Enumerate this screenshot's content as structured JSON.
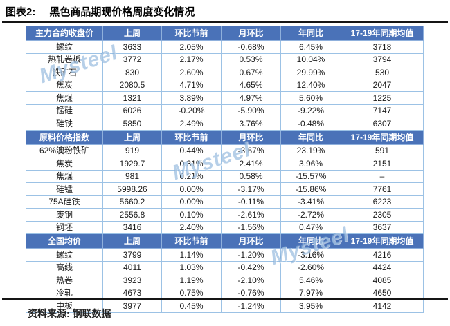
{
  "title": {
    "tag": "图表2:",
    "text": "黑色商品期现价格周度变化情况"
  },
  "footer": {
    "label": "资料来源:",
    "source": "钢联数据"
  },
  "watermark": {
    "text": "Mysteel"
  },
  "colors": {
    "header_blue": "#4a72b8",
    "cell_border_blue": "#9cc2e5",
    "up_bg": "#f8c9ce",
    "up_text": "#c00000",
    "down_bg": "#c9efce",
    "down_text": "#0b7a2e",
    "watermark_blue": "#7aa8d6",
    "rule_black": "#151515"
  },
  "table": {
    "columns": [
      "上周",
      "环比节前",
      "月环比",
      "年同比",
      "17-19年同期均值"
    ],
    "sections": [
      {
        "header": "主力合约收盘价",
        "rows": [
          {
            "name": "螺纹",
            "last_week": "3633",
            "wow": "2.05%",
            "wow_style": "up",
            "mom": "-0.68%",
            "yoy": "6.45%",
            "avg": "3718"
          },
          {
            "name": "热轧卷板",
            "last_week": "3772",
            "wow": "2.17%",
            "wow_style": "up",
            "mom": "0.53%",
            "yoy": "10.04%",
            "avg": "3794"
          },
          {
            "name": "铁矿石",
            "last_week": "830",
            "wow": "2.60%",
            "wow_style": "up",
            "mom": "0.67%",
            "yoy": "29.99%",
            "avg": "530"
          },
          {
            "name": "焦炭",
            "last_week": "2080.5",
            "wow": "4.71%",
            "wow_style": "up",
            "mom": "4.65%",
            "yoy": "12.40%",
            "avg": "2047"
          },
          {
            "name": "焦煤",
            "last_week": "1321",
            "wow": "3.89%",
            "wow_style": "up",
            "mom": "4.97%",
            "yoy": "5.60%",
            "avg": "1225"
          },
          {
            "name": "锰硅",
            "last_week": "6026",
            "wow": "-0.20%",
            "wow_style": "down",
            "mom": "-5.90%",
            "yoy": "-9.22%",
            "avg": "7147"
          },
          {
            "name": "硅铁",
            "last_week": "5850",
            "wow": "2.49%",
            "wow_style": "up",
            "mom": "3.76%",
            "yoy": "-0.48%",
            "avg": "6307"
          }
        ]
      },
      {
        "header": "原料价格指数",
        "rows": [
          {
            "name": "62%澳粉铁矿",
            "last_week": "919",
            "wow": "0.44%",
            "wow_style": "up",
            "mom": "-3.67%",
            "yoy": "23.19%",
            "avg": "591"
          },
          {
            "name": "焦炭",
            "last_week": "1929.7",
            "wow": "0.31%",
            "wow_style": "up",
            "mom": "2.41%",
            "yoy": "3.96%",
            "avg": "2151"
          },
          {
            "name": "焦煤",
            "last_week": "981",
            "wow": "0.21%",
            "wow_style": "up",
            "mom": "0.58%",
            "yoy": "-15.57%",
            "avg": "–"
          },
          {
            "name": "硅锰",
            "last_week": "5998.26",
            "wow": "0.00%",
            "wow_style": "flat",
            "mom": "-3.17%",
            "yoy": "-15.86%",
            "avg": "7761"
          },
          {
            "name": "75A硅铁",
            "last_week": "5660.2",
            "wow": "0.00%",
            "wow_style": "flat",
            "mom": "-0.11%",
            "yoy": "-3.41%",
            "avg": "6223"
          },
          {
            "name": "废钢",
            "last_week": "2556.8",
            "wow": "0.10%",
            "wow_style": "up",
            "mom": "-2.61%",
            "yoy": "-2.72%",
            "avg": "2305"
          },
          {
            "name": "钢坯",
            "last_week": "3416",
            "wow": "2.40%",
            "wow_style": "up",
            "mom": "-1.56%",
            "yoy": "0.47%",
            "avg": "3637"
          }
        ]
      },
      {
        "header": "全国均价",
        "rows": [
          {
            "name": "螺纹",
            "last_week": "3799",
            "wow": "1.14%",
            "wow_style": "up",
            "mom": "-1.20%",
            "yoy": "-3.16%",
            "avg": "4216"
          },
          {
            "name": "高线",
            "last_week": "4011",
            "wow": "1.03%",
            "wow_style": "up",
            "mom": "-0.42%",
            "yoy": "-2.60%",
            "avg": "4424"
          },
          {
            "name": "热卷",
            "last_week": "3923",
            "wow": "1.19%",
            "wow_style": "up",
            "mom": "-2.10%",
            "yoy": "5.46%",
            "avg": "4085"
          },
          {
            "name": "冷轧",
            "last_week": "4673",
            "wow": "0.75%",
            "wow_style": "up",
            "mom": "-0.76%",
            "yoy": "7.97%",
            "avg": "4650"
          },
          {
            "name": "中板",
            "last_week": "3977",
            "wow": "0.45%",
            "wow_style": "up",
            "mom": "-1.24%",
            "yoy": "3.95%",
            "avg": "4142"
          }
        ]
      }
    ]
  }
}
